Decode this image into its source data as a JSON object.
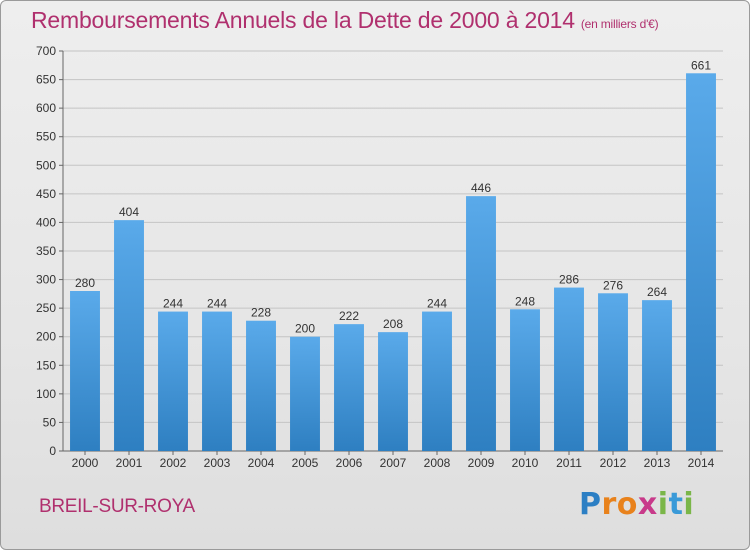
{
  "title": "Remboursements Annuels de la Dette de 2000 à 2014",
  "unit_note": "(en milliers d'€)",
  "town": "BREIL-SUR-ROYA",
  "logo_text": "Proxiti",
  "colors": {
    "title": "#b0306e",
    "bar_light": "#5aaaea",
    "bar_dark": "#2e7fc1"
  },
  "chart_data": {
    "type": "bar",
    "categories": [
      "2000",
      "2001",
      "2002",
      "2003",
      "2004",
      "2005",
      "2006",
      "2007",
      "2008",
      "2009",
      "2010",
      "2011",
      "2012",
      "2013",
      "2014"
    ],
    "values": [
      280,
      404,
      244,
      244,
      228,
      200,
      222,
      208,
      244,
      446,
      248,
      286,
      276,
      264,
      661
    ],
    "title": "Remboursements Annuels de la Dette de 2000 à 2014",
    "xlabel": "",
    "ylabel": "",
    "ylim": [
      0,
      700
    ],
    "yticks": [
      0,
      50,
      100,
      150,
      200,
      250,
      300,
      350,
      400,
      450,
      500,
      550,
      600,
      650,
      700
    ],
    "grid": true,
    "legend": "none"
  }
}
